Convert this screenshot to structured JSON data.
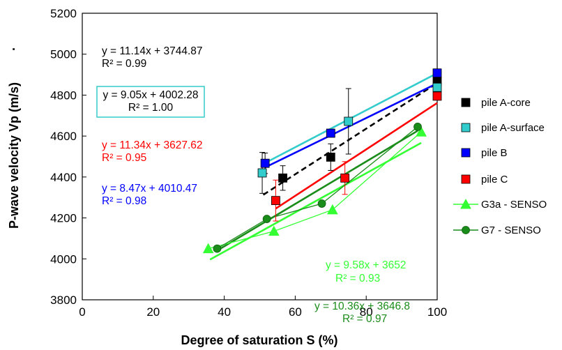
{
  "chart_data": {
    "type": "scatter",
    "title": "",
    "xlabel": "Degree of saturation S (%)",
    "ylabel": "P-wave velocity Vp (m/s)",
    "ylabel_suffix": "·",
    "xlim": [
      0,
      100
    ],
    "ylim": [
      3800,
      5200
    ],
    "x_ticks": [
      "0",
      "20",
      "40",
      "60",
      "80",
      "100"
    ],
    "y_ticks": [
      "3800",
      "4000",
      "4200",
      "4400",
      "4600",
      "4800",
      "5000",
      "5200"
    ],
    "grid": false,
    "legend_position": "right",
    "series": [
      {
        "name": "pile A-core",
        "marker": "square",
        "color": "#000000",
        "points": [
          [
            56.5,
            4395
          ],
          [
            70,
            4497
          ],
          [
            100,
            4869
          ]
        ],
        "errors": [
          60,
          65,
          0
        ],
        "fit": {
          "slope": 11.14,
          "intercept": 3744.87,
          "x_range": [
            51,
            100
          ],
          "dashed": true
        }
      },
      {
        "name": "pile A-surface",
        "marker": "square",
        "color": "#33cccc",
        "points": [
          [
            50.7,
            4420
          ],
          [
            75,
            4672
          ],
          [
            100,
            4838
          ]
        ],
        "errors": [
          100,
          160,
          0
        ],
        "fit": {
          "slope": 9.05,
          "intercept": 4002.28,
          "x_range": [
            50.7,
            100
          ],
          "dashed": false
        }
      },
      {
        "name": "pile B",
        "marker": "square",
        "color": "#0000ff",
        "points": [
          [
            51.5,
            4467
          ],
          [
            70,
            4614
          ],
          [
            100,
            4908
          ]
        ],
        "errors": [
          50,
          0,
          0
        ],
        "fit": {
          "slope": 8.47,
          "intercept": 4010.47,
          "x_range": [
            51.5,
            100
          ],
          "dashed": false
        }
      },
      {
        "name": "pile C",
        "marker": "square",
        "color": "#ff0000",
        "points": [
          [
            54.5,
            4285
          ],
          [
            74,
            4395
          ],
          [
            100,
            4795
          ]
        ],
        "errors": [
          100,
          80,
          0
        ],
        "fit": {
          "slope": 11.34,
          "intercept": 3627.62,
          "x_range": [
            54.5,
            100
          ],
          "dashed": false
        }
      },
      {
        "name": "G3a - SENSO",
        "marker": "triangle",
        "color": "#33ff33",
        "points": [
          [
            35.5,
            4050
          ],
          [
            54,
            4135
          ],
          [
            70.5,
            4240
          ],
          [
            95.5,
            4620
          ]
        ],
        "connect": true,
        "fit": {
          "slope": 9.58,
          "intercept": 3652,
          "x_range": [
            36,
            95.5
          ],
          "dashed": false
        }
      },
      {
        "name": "G7 - SENSO",
        "marker": "circle",
        "color": "#1a8c1a",
        "points": [
          [
            38,
            4050
          ],
          [
            52,
            4195
          ],
          [
            67.5,
            4270
          ],
          [
            94.5,
            4645
          ]
        ],
        "connect": true,
        "fit": {
          "slope": 10.36,
          "intercept": 3646.8,
          "x_range": [
            38,
            94.5
          ],
          "dashed": false
        }
      }
    ],
    "equations": [
      {
        "line1": "y = 11.14x + 3744.87",
        "line2": "R² = 0.99",
        "color": "#000000"
      },
      {
        "line1": "y = 9.05x + 4002.28",
        "line2": "R² = 1.00",
        "color": "#000000",
        "boxed": true,
        "box_color": "#33cccc"
      },
      {
        "line1": "y = 11.34x + 3627.62",
        "line2": "R² = 0.95",
        "color": "#ff0000"
      },
      {
        "line1": "y = 8.47x + 4010.47",
        "line2": "R² = 0.98",
        "color": "#0000ff"
      },
      {
        "line1": "y = 9.58x + 3652",
        "line2": "R² = 0.93",
        "color": "#33ff33"
      },
      {
        "line1": "y = 10.36x + 3646.8",
        "line2": "R² = 0.97",
        "color": "#1a8c1a"
      }
    ]
  }
}
